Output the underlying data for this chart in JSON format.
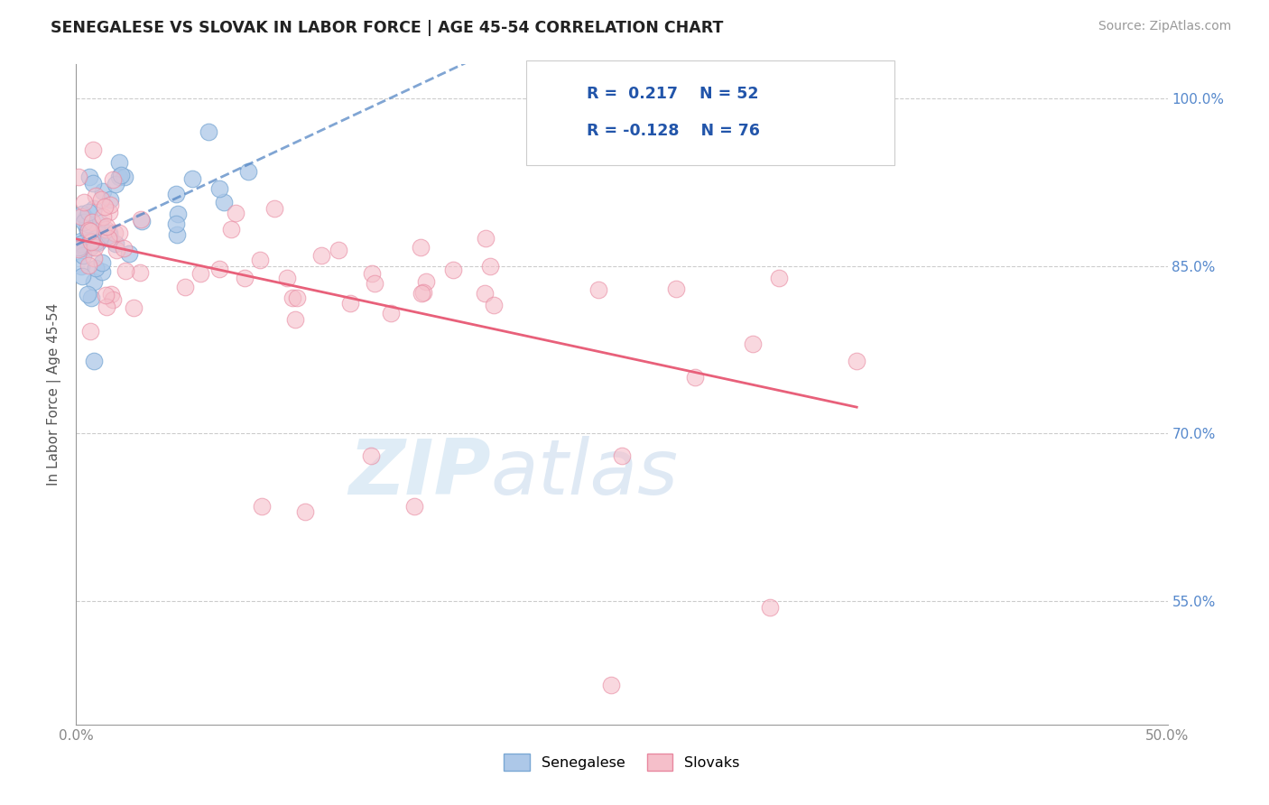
{
  "title": "SENEGALESE VS SLOVAK IN LABOR FORCE | AGE 45-54 CORRELATION CHART",
  "source_text": "Source: ZipAtlas.com",
  "ylabel": "In Labor Force | Age 45-54",
  "xlim": [
    0.0,
    0.5
  ],
  "ylim": [
    0.44,
    1.03
  ],
  "xtick_labels": [
    "0.0%",
    "",
    "",
    "",
    "",
    "50.0%"
  ],
  "xtick_values": [
    0.0,
    0.1,
    0.2,
    0.3,
    0.4,
    0.5
  ],
  "ytick_labels": [
    "100.0%",
    "85.0%",
    "70.0%",
    "55.0%"
  ],
  "ytick_values": [
    1.0,
    0.85,
    0.7,
    0.55
  ],
  "hlines": [
    0.55,
    0.7,
    0.85,
    1.0
  ],
  "senegalese_color": "#adc8e8",
  "slovak_color": "#f5bfca",
  "senegalese_edge": "#7aa8d4",
  "slovak_edge": "#e888a0",
  "trend_sen_color": "#4a7fc1",
  "trend_slo_color": "#e8607a",
  "R_senegalese": 0.217,
  "N_senegalese": 52,
  "R_slovak": -0.128,
  "N_slovak": 76,
  "watermark_zip": "ZIP",
  "watermark_atlas": "atlas",
  "background_color": "#ffffff",
  "ytick_color": "#5588cc",
  "xtick_color": "#888888"
}
